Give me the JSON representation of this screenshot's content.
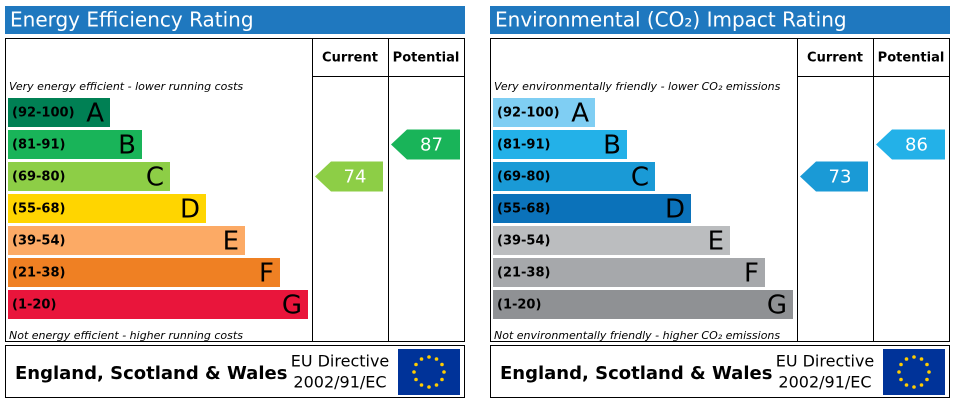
{
  "panels": [
    {
      "title": "Energy Efficiency Rating",
      "current_label": "Current",
      "potential_label": "Potential",
      "top_note": "Very energy efficient - lower running costs",
      "bottom_note": "Not energy efficient - higher running costs",
      "bands": [
        {
          "range": "(92-100)",
          "letter": "A",
          "color": "#008054"
        },
        {
          "range": "(81-91)",
          "letter": "B",
          "color": "#19b459"
        },
        {
          "range": "(69-80)",
          "letter": "C",
          "color": "#8dce46"
        },
        {
          "range": "(55-68)",
          "letter": "D",
          "color": "#ffd500"
        },
        {
          "range": "(39-54)",
          "letter": "E",
          "color": "#fcaa65"
        },
        {
          "range": "(21-38)",
          "letter": "F",
          "color": "#ef8023"
        },
        {
          "range": "(1-20)",
          "letter": "G",
          "color": "#e9153b"
        }
      ],
      "current": 74,
      "potential": 87,
      "region": "England, Scotland & Wales",
      "directive": [
        "EU Directive",
        "2002/91/EC"
      ]
    },
    {
      "title": "Environmental (CO₂) Impact Rating",
      "current_label": "Current",
      "potential_label": "Potential",
      "top_note": "Very environmentally friendly - lower CO₂ emissions",
      "bottom_note": "Not environmentally friendly - higher CO₂ emissions",
      "bands": [
        {
          "range": "(92-100)",
          "letter": "A",
          "color": "#7fcef3"
        },
        {
          "range": "(81-91)",
          "letter": "B",
          "color": "#23b1e8"
        },
        {
          "range": "(69-80)",
          "letter": "C",
          "color": "#1a9ad6"
        },
        {
          "range": "(55-68)",
          "letter": "D",
          "color": "#0b72ba"
        },
        {
          "range": "(39-54)",
          "letter": "E",
          "color": "#bbbdbf"
        },
        {
          "range": "(21-38)",
          "letter": "F",
          "color": "#a6a8ab"
        },
        {
          "range": "(1-20)",
          "letter": "G",
          "color": "#8f9194"
        }
      ],
      "current": 73,
      "potential": 86,
      "region": "England, Scotland & Wales",
      "directive": [
        "EU Directive",
        "2002/91/EC"
      ]
    }
  ]
}
